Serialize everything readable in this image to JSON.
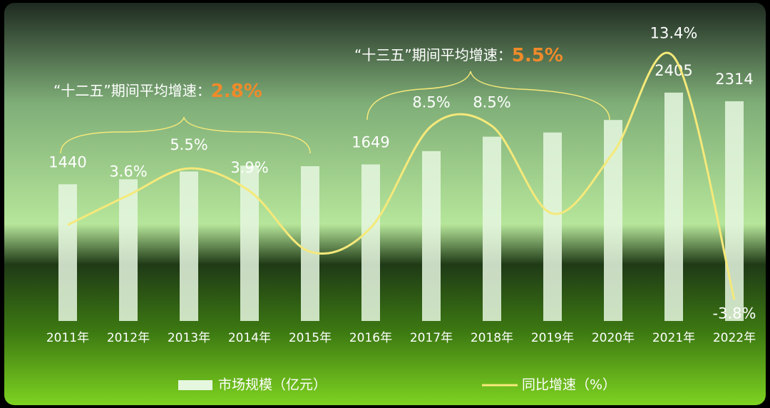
{
  "chart_data": {
    "type": "bar_line",
    "annotations": [
      {
        "text": "“十二五”期间平均增速：",
        "value": "2.8%"
      },
      {
        "text": "“十三五”期间平均增速：",
        "value": "5.5%"
      }
    ],
    "categories": [
      "2011年",
      "2012年",
      "2013年",
      "2014年",
      "2015年",
      "2016年",
      "2017年",
      "2018年",
      "2019年",
      "2020年",
      "2021年",
      "2022年"
    ],
    "series": [
      {
        "name": "市场规模（亿元）",
        "color": "#e6f7e0",
        "axis": "y",
        "values": [
          1440,
          1492,
          1574,
          1636,
          1630,
          1649,
          1789,
          1941,
          1985,
          2117,
          2405,
          2314
        ],
        "value_labels": [
          "1440",
          null,
          null,
          null,
          null,
          "1649",
          null,
          null,
          null,
          null,
          "2405",
          "2314"
        ]
      },
      {
        "name": "同比增速（%）",
        "color": "#f5e97a",
        "axis": "y2",
        "values": [
          1.5,
          3.6,
          5.5,
          3.9,
          -0.4,
          1.3,
          8.5,
          8.5,
          2.3,
          6.6,
          13.4,
          -3.8
        ],
        "value_labels": [
          null,
          "3.6%",
          "5.5%",
          "3.9%",
          null,
          null,
          "8.5%",
          "8.5%",
          null,
          null,
          "13.4%",
          "-3.8%"
        ]
      }
    ],
    "ylim": [
      0,
      3080
    ],
    "y2lim": [
      -5.3,
      15.4
    ]
  }
}
